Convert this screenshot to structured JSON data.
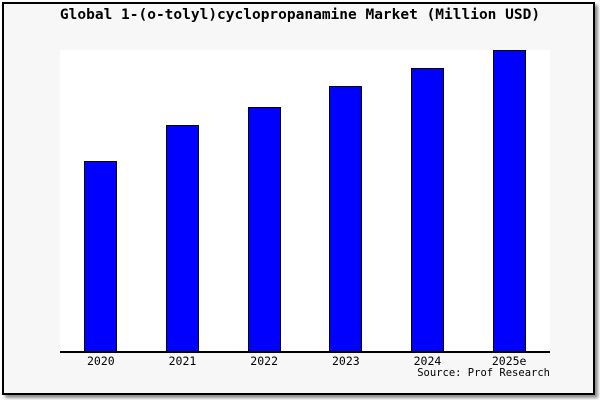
{
  "page": {
    "background": "#f7f7f7",
    "plot_background": "#ffffff",
    "border_color": "#000000"
  },
  "title": "Global 1-(o-tolyl)cyclopropanamine Market (Million USD)",
  "source": "Source: Prof Research",
  "chart_data": {
    "type": "bar",
    "title": "Global 1-(o-tolyl)cyclopropanamine Market (Million USD)",
    "categories": [
      "2020",
      "2021",
      "2022",
      "2023",
      "2024",
      "2025e"
    ],
    "values": [
      63,
      75,
      81,
      88,
      94,
      100
    ],
    "units": "relative height, % of chart maximum (no y-axis labels shown in image)",
    "xlabel": "",
    "ylabel": "",
    "ylim": [
      0,
      100
    ],
    "grid": false,
    "legend": false,
    "bar_color": "#0000fe",
    "bar_border_color": "#000000",
    "source_label": "Source: Prof Research"
  }
}
